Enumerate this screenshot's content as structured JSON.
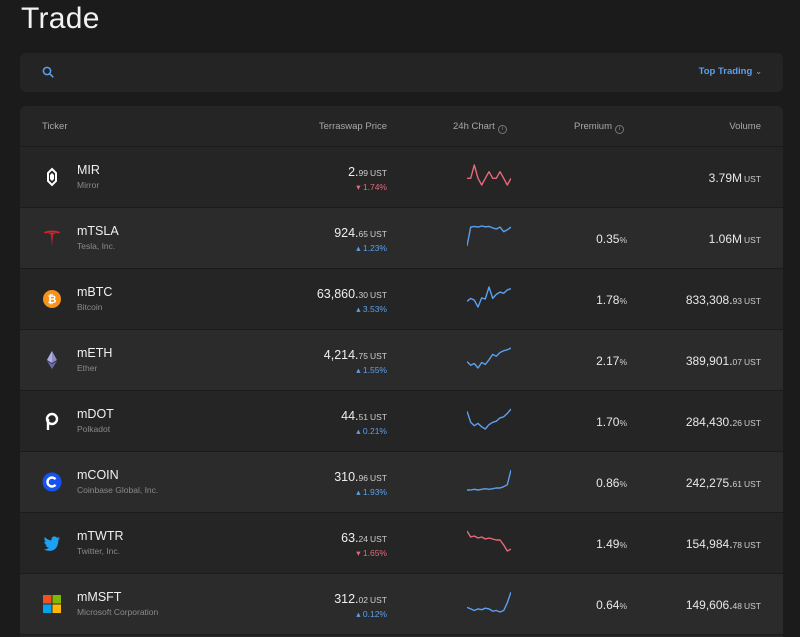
{
  "page": {
    "title": "Trade"
  },
  "search": {
    "placeholder": "",
    "sort_label": "Top Trading"
  },
  "table": {
    "headers": {
      "ticker": "Ticker",
      "price": "Terraswap Price",
      "chart": "24h Chart",
      "premium": "Premium",
      "volume": "Volume"
    },
    "rows": [
      {
        "symbol": "MIR",
        "name": "Mirror",
        "logo": "mirror-icon",
        "price_int": "2.",
        "price_dec": "99",
        "price_unit": "UST",
        "change": "▾ 1.74%",
        "direction": "down",
        "premium_int": "",
        "premium_pct": "",
        "volume_int": "3.79M",
        "volume_dec": "",
        "volume_unit": "UST",
        "spark": [
          5,
          5,
          5.2,
          5,
          4.9,
          5,
          5.1,
          5,
          5,
          5.1,
          5,
          4.9,
          5
        ]
      },
      {
        "symbol": "mTSLA",
        "name": "Tesla, Inc.",
        "logo": "tesla-icon",
        "price_int": "924.",
        "price_dec": "65",
        "price_unit": "UST",
        "change": "▴ 1.23%",
        "direction": "up",
        "premium_int": "0.35",
        "premium_pct": "%",
        "volume_int": "1.06M",
        "volume_dec": "",
        "volume_unit": "UST",
        "spark": [
          2,
          7,
          7.2,
          7,
          7.3,
          7.1,
          7.2,
          6.8,
          6.5,
          7,
          5.8,
          6.3,
          7
        ]
      },
      {
        "symbol": "mBTC",
        "name": "Bitcoin",
        "logo": "bitcoin-icon",
        "price_int": "63,860.",
        "price_dec": "30",
        "price_unit": "UST",
        "change": "▴ 3.53%",
        "direction": "up",
        "premium_int": "1.78",
        "premium_pct": "%",
        "volume_int": "833,308.",
        "volume_dec": "93",
        "volume_unit": "UST",
        "spark": [
          4,
          4.5,
          4.2,
          3,
          4.6,
          4.4,
          6.5,
          4.5,
          5.2,
          5.6,
          5.4,
          6,
          6.2
        ]
      },
      {
        "symbol": "mETH",
        "name": "Ether",
        "logo": "ethereum-icon",
        "price_int": "4,214.",
        "price_dec": "75",
        "price_unit": "UST",
        "change": "▴ 1.55%",
        "direction": "up",
        "premium_int": "2.17",
        "premium_pct": "%",
        "volume_int": "389,901.",
        "volume_dec": "07",
        "volume_unit": "UST",
        "spark": [
          4,
          3.6,
          3.8,
          3.3,
          3.9,
          3.7,
          4.2,
          4.8,
          4.6,
          5,
          5.2,
          5.3,
          5.5
        ]
      },
      {
        "symbol": "mDOT",
        "name": "Polkadot",
        "logo": "polkadot-icon",
        "price_int": "44.",
        "price_dec": "51",
        "price_unit": "UST",
        "change": "▴ 0.21%",
        "direction": "up",
        "premium_int": "1.70",
        "premium_pct": "%",
        "volume_int": "284,430.",
        "volume_dec": "26",
        "volume_unit": "UST",
        "spark": [
          6,
          5,
          4.7,
          4.9,
          4.6,
          4.4,
          4.8,
          5,
          5.1,
          5.4,
          5.5,
          5.8,
          6.2
        ]
      },
      {
        "symbol": "mCOIN",
        "name": "Coinbase Global, Inc.",
        "logo": "coinbase-icon",
        "price_int": "310.",
        "price_dec": "96",
        "price_unit": "UST",
        "change": "▴ 1.93%",
        "direction": "up",
        "premium_int": "0.86",
        "premium_pct": "%",
        "volume_int": "242,275.",
        "volume_dec": "61",
        "volume_unit": "UST",
        "spark": [
          3.5,
          3.5,
          3.6,
          3.5,
          3.6,
          3.7,
          3.6,
          3.7,
          3.8,
          3.8,
          4,
          4.3,
          6.5
        ]
      },
      {
        "symbol": "mTWTR",
        "name": "Twitter, Inc.",
        "logo": "twitter-icon",
        "price_int": "63.",
        "price_dec": "24",
        "price_unit": "UST",
        "change": "▾ 1.65%",
        "direction": "down",
        "premium_int": "1.49",
        "premium_pct": "%",
        "volume_int": "154,984.",
        "volume_dec": "78",
        "volume_unit": "UST",
        "spark": [
          7,
          6.4,
          6.5,
          6.3,
          6.4,
          6.2,
          6.3,
          6.2,
          6.1,
          6.1,
          5.6,
          5,
          5.2
        ]
      },
      {
        "symbol": "mMSFT",
        "name": "Microsoft Corporation",
        "logo": "microsoft-icon",
        "price_int": "312.",
        "price_dec": "02",
        "price_unit": "UST",
        "change": "▴ 0.12%",
        "direction": "up",
        "premium_int": "0.64",
        "premium_pct": "%",
        "volume_int": "149,606.",
        "volume_dec": "48",
        "volume_unit": "UST",
        "spark": [
          4.2,
          4,
          3.8,
          4,
          3.9,
          4.1,
          4,
          3.7,
          3.8,
          3.6,
          3.8,
          4.8,
          6.2
        ]
      }
    ]
  },
  "colors": {
    "up": "#5aa0ee",
    "down": "#e8697a",
    "accent": "#5aa0ee"
  }
}
